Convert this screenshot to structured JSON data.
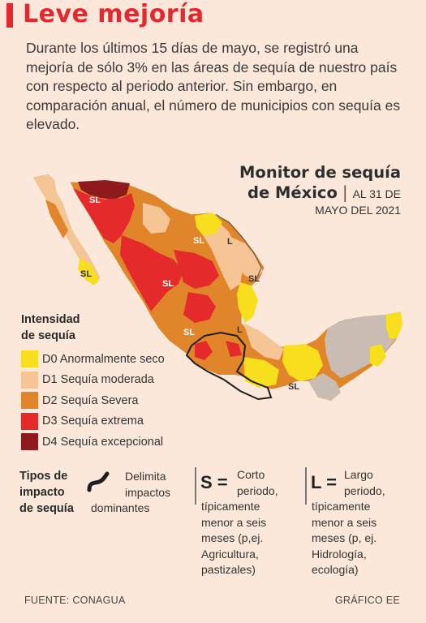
{
  "title": "Leve mejoría",
  "intro": "Durante los últimos 15 días de mayo, se registró una mejoría de sólo 3% en las áreas de sequía de nuestro país con respecto al periodo anterior. Sin embargo, en comparación anual, el número de municipios con sequía es elevado.",
  "monitor": {
    "title_line1": "Monitor de sequía",
    "title_line2": "de México",
    "separator": "|",
    "date_part1": "AL 31 DE",
    "date_part2": "MAYO DEL 2021"
  },
  "map_labels": {
    "sl": "SL",
    "l": "L"
  },
  "legend": {
    "title_line1": "Intensidad",
    "title_line2": "de sequía",
    "items": [
      {
        "label": "D0 Anormalmente seco",
        "color": "#f7df1e"
      },
      {
        "label": "D1 Sequía moderada",
        "color": "#f6c595"
      },
      {
        "label": "D2 Sequía Severa",
        "color": "#e1852a"
      },
      {
        "label": "D3 Sequía extrema",
        "color": "#e42a2a"
      },
      {
        "label": "D4 Sequía excepcional",
        "color": "#8e1a1d"
      }
    ]
  },
  "impact": {
    "title_line1": "Tipos de",
    "title_line2": "impacto",
    "title_line3": "de sequía",
    "delimit_line1": "Delimita",
    "delimit_line2": "impactos",
    "delimit_line3": "dominantes",
    "s_letter": "S =",
    "s_line1": "Corto",
    "s_line2": "periodo,",
    "s_line3": "típicamente",
    "s_line4": "menor a seis",
    "s_line5": "meses (p,ej.",
    "s_line6": "Agricultura,",
    "s_line7": "pastizales)",
    "l_letter": "L =",
    "l_line1": "Largo",
    "l_line2": "periodo,",
    "l_line3": "típicamente",
    "l_line4": "menor a seis",
    "l_line5": "meses (p, ej.",
    "l_line6": "Hidrología,",
    "l_line7": "ecología)"
  },
  "footer": {
    "source": "FUENTE: CONAGUA",
    "credit": "GRÁFICO EE"
  }
}
